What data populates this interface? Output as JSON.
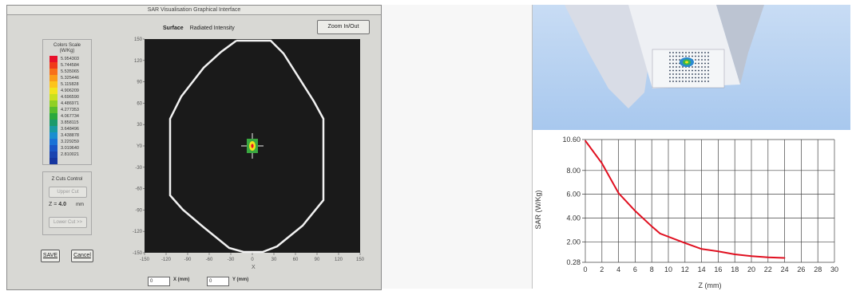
{
  "window": {
    "title": "SAR Visualisation Graphical Interface",
    "zoom_label": "Zoom In/Out",
    "surface_label": "Surface",
    "surface_mode": "Radiated Intensity"
  },
  "color_scale": {
    "title": "Colors Scale",
    "unit": "(W/Kg)",
    "colors": [
      "#e8102a",
      "#f03a1a",
      "#f7701a",
      "#fb9c18",
      "#fdc41a",
      "#f2e41c",
      "#c9e01e",
      "#8fd024",
      "#58bd2c",
      "#2aa83c",
      "#1a9a6a",
      "#189aa2",
      "#1a8ed0",
      "#1a72d6",
      "#1a56c6",
      "#1a44b0",
      "#1636a0"
    ],
    "values": [
      "5.954303",
      "5.744584",
      "5.535065",
      "5.325446",
      "5.115828",
      "4.906209",
      "4.696590",
      "4.486971",
      "4.277353",
      "4.067734",
      "3.858115",
      "3.648496",
      "3.438878",
      "3.229259",
      "3.019640",
      "2.810021",
      ""
    ]
  },
  "zcut": {
    "title": "Z Cuts Control",
    "upper_label": "Upper Cut",
    "z_prefix": "Z =",
    "z_value": "4.0",
    "z_unit": "mm",
    "lower_label": "Lower Cut >>"
  },
  "buttons": {
    "save": "SAVE",
    "cancel": "Cancel"
  },
  "plot": {
    "yticks": [
      "150",
      "120",
      "90",
      "60",
      "30",
      "0",
      "-30",
      "-60",
      "-90",
      "-120",
      "-150"
    ],
    "xticks": [
      "-150",
      "-120",
      "-90",
      "-60",
      "-30",
      "0",
      "30",
      "60",
      "90",
      "120",
      "150"
    ],
    "xlabel": "X",
    "ylabel": "Y"
  },
  "coords": {
    "x_value": "0",
    "x_label": "X (mm)",
    "y_value": "0",
    "y_label": "Y (mm)"
  },
  "chart_data": {
    "type": "line",
    "xlabel": "Z (mm)",
    "ylabel": "SAR (W/Kg)",
    "xlim": [
      0,
      30
    ],
    "ylim": [
      0.28,
      10.6
    ],
    "xticks": [
      "0",
      "2",
      "4",
      "6",
      "8",
      "10",
      "12",
      "14",
      "16",
      "18",
      "20",
      "22",
      "24",
      "26",
      "28",
      "30"
    ],
    "yticks": [
      "10.60",
      "8.00",
      "6.00",
      "4.00",
      "2.00",
      "0.28"
    ],
    "ytick_values": [
      10.6,
      8.0,
      6.0,
      4.0,
      2.0,
      0.28
    ],
    "grid": true,
    "color": "#e01020",
    "series": [
      {
        "x": [
          0,
          2,
          4,
          6,
          8,
          9,
          12,
          14,
          16,
          18,
          20,
          22,
          24
        ],
        "y": [
          10.5,
          8.6,
          6.1,
          4.6,
          3.3,
          2.7,
          1.9,
          1.4,
          1.2,
          0.95,
          0.8,
          0.7,
          0.65
        ]
      }
    ]
  }
}
